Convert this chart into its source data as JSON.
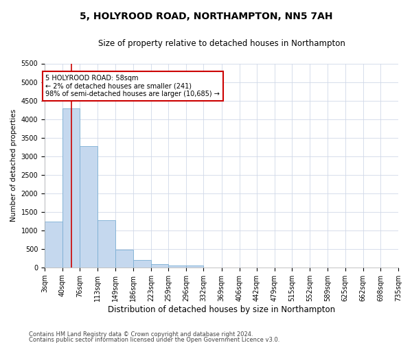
{
  "title": "5, HOLYROOD ROAD, NORTHAMPTON, NN5 7AH",
  "subtitle": "Size of property relative to detached houses in Northampton",
  "xlabel": "Distribution of detached houses by size in Northampton",
  "ylabel": "Number of detached properties",
  "property_size": 58,
  "annotation_line1": "5 HOLYROOD ROAD: 58sqm",
  "annotation_line2": "← 2% of detached houses are smaller (241)",
  "annotation_line3": "98% of semi-detached houses are larger (10,685) →",
  "footer_line1": "Contains HM Land Registry data © Crown copyright and database right 2024.",
  "footer_line2": "Contains public sector information licensed under the Open Government Licence v3.0.",
  "bar_color": "#c5d8ee",
  "bar_edge_color": "#7bafd4",
  "vline_color": "#cc0000",
  "annotation_box_color": "#cc0000",
  "bin_edges": [
    3,
    40,
    76,
    113,
    149,
    186,
    223,
    259,
    296,
    332,
    369,
    406,
    442,
    479,
    515,
    552,
    589,
    625,
    662,
    698,
    735
  ],
  "bin_counts": [
    1230,
    4280,
    3270,
    1270,
    480,
    200,
    90,
    55,
    55,
    0,
    0,
    0,
    0,
    0,
    0,
    0,
    0,
    0,
    0,
    0
  ],
  "ylim": [
    0,
    5500
  ],
  "yticks": [
    0,
    500,
    1000,
    1500,
    2000,
    2500,
    3000,
    3500,
    4000,
    4500,
    5000,
    5500
  ],
  "background_color": "#ffffff",
  "grid_color": "#d0d8e8",
  "title_fontsize": 10,
  "subtitle_fontsize": 8.5,
  "xlabel_fontsize": 8.5,
  "ylabel_fontsize": 7.5,
  "tick_fontsize": 7,
  "footer_fontsize": 6,
  "annotation_fontsize": 7
}
